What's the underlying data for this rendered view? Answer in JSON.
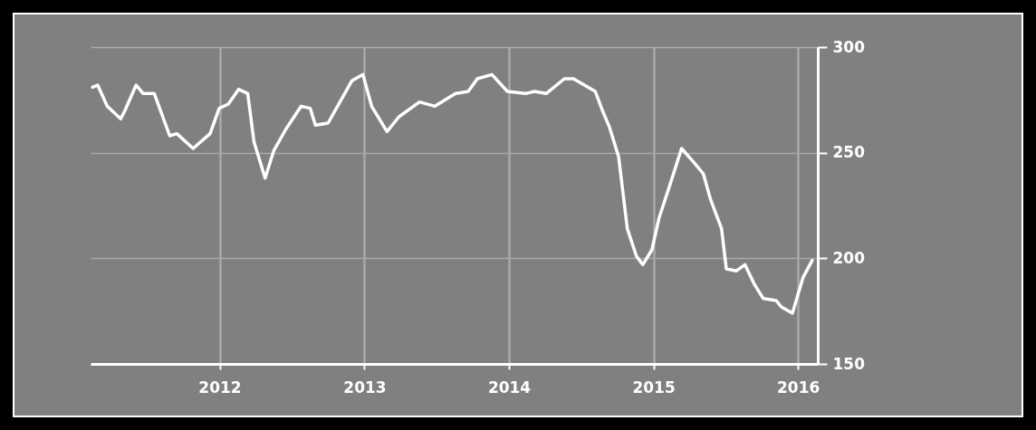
{
  "chart_data": {
    "type": "line",
    "x": [
      "2011-02-14",
      "2011-02-27",
      "2011-03-23",
      "2011-04-26",
      "2011-05-07",
      "2011-06-04",
      "2011-06-22",
      "2011-07-20",
      "2011-08-28",
      "2011-09-15",
      "2011-10-26",
      "2011-12-08",
      "2011-12-31",
      "2012-01-23",
      "2012-02-18",
      "2012-03-12",
      "2012-03-28",
      "2012-04-25",
      "2012-05-17",
      "2012-06-16",
      "2012-07-25",
      "2012-08-17",
      "2012-08-30",
      "2012-10-01",
      "2012-10-31",
      "2012-11-30",
      "2012-12-28",
      "2013-01-19",
      "2013-02-27",
      "2013-03-29",
      "2013-05-20",
      "2013-06-28",
      "2013-08-19",
      "2013-09-20",
      "2013-10-13",
      "2013-11-19",
      "2013-12-28",
      "2014-02-12",
      "2014-03-06",
      "2014-04-05",
      "2014-05-21",
      "2014-06-13",
      "2014-08-07",
      "2014-08-25",
      "2014-09-12",
      "2014-10-05",
      "2014-10-27",
      "2014-11-19",
      "2014-12-05",
      "2014-12-28",
      "2015-01-15",
      "2015-02-12",
      "2015-03-13",
      "2015-04-15",
      "2015-05-07",
      "2015-05-25",
      "2015-06-22",
      "2015-07-04",
      "2015-07-29",
      "2015-08-20",
      "2015-09-12",
      "2015-10-05",
      "2015-11-07",
      "2015-11-20",
      "2015-12-18",
      "2016-01-14",
      "2016-02-06"
    ],
    "series": [
      {
        "color": "#ffffff",
        "values": [
          281,
          282,
          272,
          266,
          270,
          282,
          278,
          278,
          258,
          259,
          252,
          259,
          271,
          273,
          280,
          278,
          255,
          238,
          251,
          261,
          272,
          271,
          263,
          264,
          274,
          284,
          287,
          272,
          260,
          267,
          274,
          272,
          278,
          279,
          285,
          287,
          279,
          278,
          279,
          278,
          285,
          285,
          279,
          270,
          262,
          248,
          214,
          201,
          197,
          204,
          219,
          235,
          252,
          245,
          240,
          228,
          214,
          195,
          194,
          197,
          188,
          181,
          180,
          177,
          174,
          191,
          199
        ]
      }
    ],
    "xlim": [
      "2011-02-09",
      "2016-02-20"
    ],
    "xticks": [
      {
        "value": "2012",
        "label": "2012"
      },
      {
        "value": "2013",
        "label": "2013"
      },
      {
        "value": "2014",
        "label": "2014"
      },
      {
        "value": "2015",
        "label": "2015"
      },
      {
        "value": "2016",
        "label": "2016"
      }
    ],
    "ylim": [
      150,
      300
    ],
    "yticks": [
      150,
      200,
      250,
      300
    ],
    "grid": true
  }
}
